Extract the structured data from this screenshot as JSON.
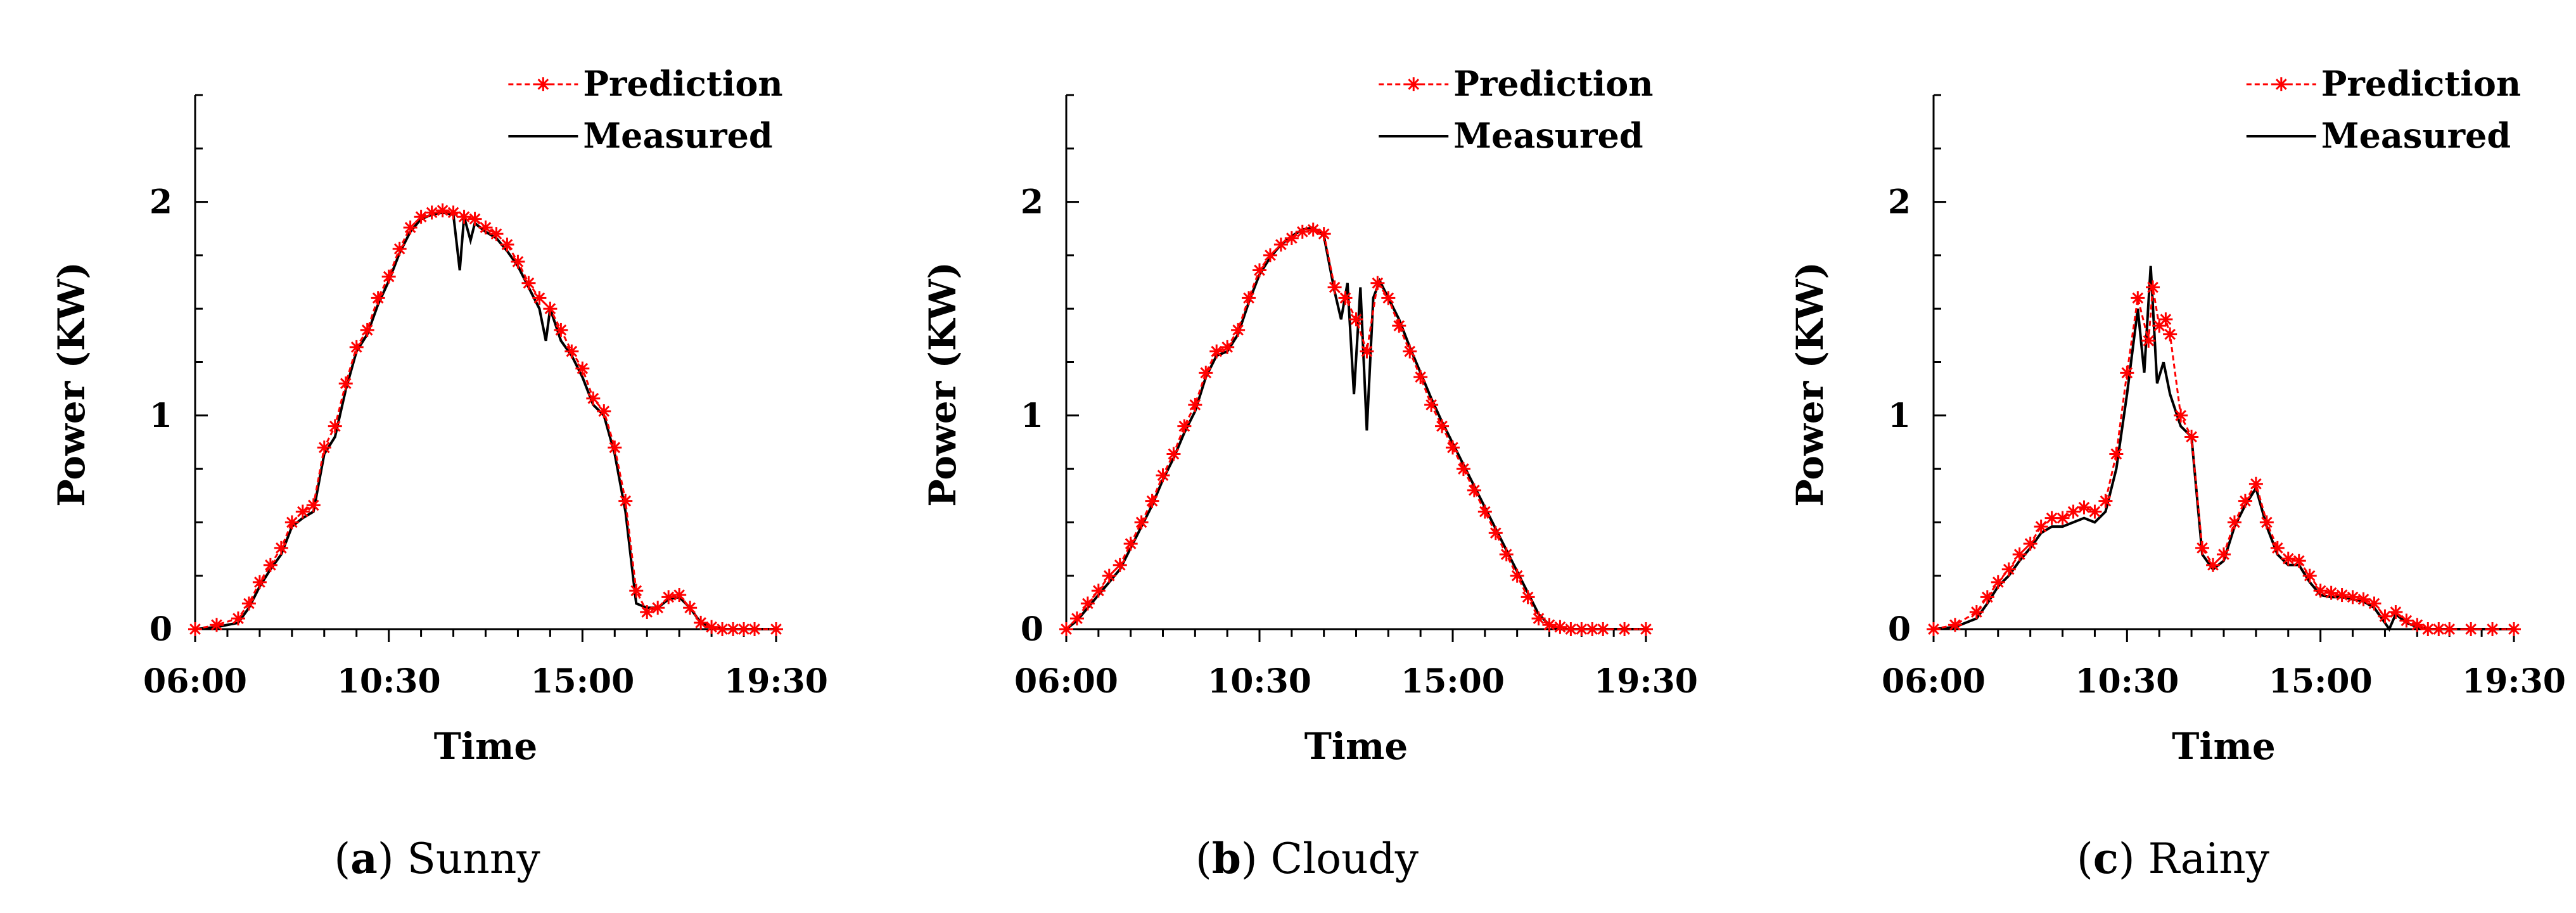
{
  "chart_data": [
    {
      "type": "line",
      "caption": {
        "letter": "a",
        "label": "Sunny"
      },
      "xlabel": "Time",
      "ylabel": "Power (KW)",
      "x_tick_labels": [
        "06:00",
        "10:30",
        "15:00",
        "19:30"
      ],
      "x_tick_hours": [
        6,
        10.5,
        15,
        19.5
      ],
      "y_ticks": [
        0,
        1,
        2
      ],
      "xlim": [
        6,
        19.5
      ],
      "ylim": [
        0,
        2.5
      ],
      "legend": [
        "Prediction",
        "Measured"
      ],
      "series": [
        {
          "name": "Prediction",
          "color": "#ff0000",
          "marker": "asterisk",
          "x": [
            6.0,
            6.5,
            7.0,
            7.25,
            7.5,
            7.75,
            8.0,
            8.25,
            8.5,
            8.75,
            9.0,
            9.25,
            9.5,
            9.75,
            10.0,
            10.25,
            10.5,
            10.75,
            11.0,
            11.25,
            11.5,
            11.75,
            12.0,
            12.25,
            12.5,
            12.75,
            13.0,
            13.25,
            13.5,
            13.75,
            14.0,
            14.25,
            14.5,
            14.75,
            15.0,
            15.25,
            15.5,
            15.75,
            16.0,
            16.25,
            16.5,
            16.75,
            17.0,
            17.25,
            17.5,
            17.75,
            18.0,
            18.25,
            18.5,
            18.75,
            19.0,
            19.5
          ],
          "y": [
            0.0,
            0.02,
            0.05,
            0.12,
            0.22,
            0.3,
            0.38,
            0.5,
            0.55,
            0.58,
            0.85,
            0.95,
            1.15,
            1.32,
            1.4,
            1.55,
            1.65,
            1.78,
            1.88,
            1.93,
            1.95,
            1.96,
            1.95,
            1.93,
            1.92,
            1.88,
            1.85,
            1.8,
            1.72,
            1.62,
            1.55,
            1.5,
            1.4,
            1.3,
            1.22,
            1.08,
            1.02,
            0.85,
            0.6,
            0.18,
            0.08,
            0.1,
            0.15,
            0.16,
            0.1,
            0.03,
            0.01,
            0.0,
            0.0,
            0.0,
            0.0,
            0.0
          ]
        },
        {
          "name": "Measured",
          "color": "#000000",
          "marker": "none",
          "x": [
            6.0,
            6.5,
            7.0,
            7.25,
            7.5,
            7.75,
            8.0,
            8.25,
            8.5,
            8.75,
            9.0,
            9.25,
            9.5,
            9.75,
            10.0,
            10.25,
            10.5,
            10.75,
            11.0,
            11.25,
            11.5,
            11.75,
            12.0,
            12.15,
            12.25,
            12.4,
            12.5,
            12.75,
            13.0,
            13.25,
            13.5,
            13.75,
            14.0,
            14.15,
            14.25,
            14.5,
            14.75,
            15.0,
            15.25,
            15.5,
            15.75,
            16.0,
            16.25,
            16.5,
            16.75,
            17.0,
            17.25,
            17.5,
            17.75,
            18.0,
            18.25,
            18.5,
            18.75,
            19.0,
            19.5
          ],
          "y": [
            0.0,
            0.01,
            0.03,
            0.1,
            0.2,
            0.28,
            0.35,
            0.48,
            0.52,
            0.55,
            0.82,
            0.9,
            1.12,
            1.3,
            1.38,
            1.52,
            1.63,
            1.76,
            1.86,
            1.92,
            1.94,
            1.95,
            1.94,
            1.68,
            1.93,
            1.82,
            1.9,
            1.86,
            1.83,
            1.77,
            1.7,
            1.6,
            1.5,
            1.35,
            1.5,
            1.35,
            1.28,
            1.18,
            1.05,
            1.0,
            0.82,
            0.55,
            0.12,
            0.1,
            0.1,
            0.14,
            0.15,
            0.1,
            0.03,
            0.01,
            0.0,
            0.0,
            0.0,
            0.0,
            0.0
          ]
        }
      ]
    },
    {
      "type": "line",
      "caption": {
        "letter": "b",
        "label": "Cloudy"
      },
      "xlabel": "Time",
      "ylabel": "Power (KW)",
      "x_tick_labels": [
        "06:00",
        "10:30",
        "15:00",
        "19:30"
      ],
      "x_tick_hours": [
        6,
        10.5,
        15,
        19.5
      ],
      "y_ticks": [
        0,
        1,
        2
      ],
      "xlim": [
        6,
        19.5
      ],
      "ylim": [
        0,
        2.5
      ],
      "legend": [
        "Prediction",
        "Measured"
      ],
      "series": [
        {
          "name": "Prediction",
          "color": "#ff0000",
          "marker": "asterisk",
          "x": [
            6.0,
            6.25,
            6.5,
            6.75,
            7.0,
            7.25,
            7.5,
            7.75,
            8.0,
            8.25,
            8.5,
            8.75,
            9.0,
            9.25,
            9.5,
            9.75,
            10.0,
            10.25,
            10.5,
            10.75,
            11.0,
            11.25,
            11.5,
            11.75,
            12.0,
            12.25,
            12.5,
            12.75,
            13.0,
            13.25,
            13.5,
            13.75,
            14.0,
            14.25,
            14.5,
            14.75,
            15.0,
            15.25,
            15.5,
            15.75,
            16.0,
            16.25,
            16.5,
            16.75,
            17.0,
            17.25,
            17.5,
            17.75,
            18.0,
            18.25,
            18.5,
            19.0,
            19.5
          ],
          "y": [
            0.0,
            0.05,
            0.12,
            0.18,
            0.25,
            0.3,
            0.4,
            0.5,
            0.6,
            0.72,
            0.82,
            0.95,
            1.05,
            1.2,
            1.3,
            1.32,
            1.4,
            1.55,
            1.68,
            1.75,
            1.8,
            1.83,
            1.86,
            1.87,
            1.85,
            1.6,
            1.55,
            1.45,
            1.3,
            1.62,
            1.55,
            1.42,
            1.3,
            1.18,
            1.05,
            0.95,
            0.85,
            0.75,
            0.65,
            0.55,
            0.45,
            0.35,
            0.25,
            0.15,
            0.05,
            0.02,
            0.01,
            0.0,
            0.0,
            0.0,
            0.0,
            0.0,
            0.0
          ]
        },
        {
          "name": "Measured",
          "color": "#000000",
          "marker": "none",
          "x": [
            6.0,
            6.25,
            6.5,
            6.75,
            7.0,
            7.25,
            7.5,
            7.75,
            8.0,
            8.25,
            8.5,
            8.75,
            9.0,
            9.25,
            9.5,
            9.75,
            10.0,
            10.25,
            10.5,
            10.75,
            11.0,
            11.25,
            11.5,
            11.75,
            12.0,
            12.25,
            12.4,
            12.55,
            12.7,
            12.85,
            13.0,
            13.15,
            13.3,
            13.5,
            13.75,
            14.0,
            14.25,
            14.5,
            14.75,
            15.0,
            15.25,
            15.5,
            15.75,
            16.0,
            16.25,
            16.5,
            16.75,
            17.0,
            17.25,
            17.5,
            17.75,
            18.0,
            18.25,
            18.5,
            19.0,
            19.5
          ],
          "y": [
            0.0,
            0.04,
            0.1,
            0.16,
            0.22,
            0.28,
            0.38,
            0.48,
            0.58,
            0.7,
            0.8,
            0.92,
            1.02,
            1.18,
            1.28,
            1.3,
            1.38,
            1.53,
            1.66,
            1.74,
            1.8,
            1.84,
            1.87,
            1.88,
            1.84,
            1.58,
            1.45,
            1.62,
            1.1,
            1.6,
            0.93,
            1.55,
            1.63,
            1.55,
            1.45,
            1.32,
            1.2,
            1.08,
            0.97,
            0.87,
            0.77,
            0.67,
            0.57,
            0.47,
            0.37,
            0.27,
            0.17,
            0.07,
            0.02,
            0.0,
            0.0,
            0.0,
            0.0,
            0.0,
            0.0,
            0.0
          ]
        }
      ]
    },
    {
      "type": "line",
      "caption": {
        "letter": "c",
        "label": "Rainy"
      },
      "xlabel": "Time",
      "ylabel": "Power (KW)",
      "x_tick_labels": [
        "06:00",
        "10:30",
        "15:00",
        "19:30"
      ],
      "x_tick_hours": [
        6,
        10.5,
        15,
        19.5
      ],
      "y_ticks": [
        0,
        1,
        2
      ],
      "xlim": [
        6,
        19.5
      ],
      "ylim": [
        0,
        2.5
      ],
      "legend": [
        "Prediction",
        "Measured"
      ],
      "series": [
        {
          "name": "Prediction",
          "color": "#ff0000",
          "marker": "asterisk",
          "x": [
            6.0,
            6.5,
            7.0,
            7.25,
            7.5,
            7.75,
            8.0,
            8.25,
            8.5,
            8.75,
            9.0,
            9.25,
            9.5,
            9.75,
            10.0,
            10.25,
            10.5,
            10.75,
            11.0,
            11.1,
            11.25,
            11.4,
            11.5,
            11.75,
            12.0,
            12.25,
            12.5,
            12.75,
            13.0,
            13.25,
            13.5,
            13.75,
            14.0,
            14.25,
            14.5,
            14.75,
            15.0,
            15.25,
            15.5,
            15.75,
            16.0,
            16.25,
            16.5,
            16.75,
            17.0,
            17.25,
            17.5,
            17.75,
            18.0,
            18.5,
            19.0,
            19.5
          ],
          "y": [
            0.0,
            0.02,
            0.08,
            0.15,
            0.22,
            0.28,
            0.35,
            0.4,
            0.48,
            0.52,
            0.52,
            0.55,
            0.57,
            0.55,
            0.6,
            0.82,
            1.2,
            1.55,
            1.35,
            1.6,
            1.42,
            1.45,
            1.38,
            1.0,
            0.9,
            0.38,
            0.3,
            0.35,
            0.5,
            0.6,
            0.68,
            0.5,
            0.38,
            0.33,
            0.32,
            0.25,
            0.18,
            0.17,
            0.16,
            0.15,
            0.14,
            0.12,
            0.06,
            0.08,
            0.04,
            0.02,
            0.0,
            0.0,
            0.0,
            0.0,
            0.0,
            0.0
          ]
        },
        {
          "name": "Measured",
          "color": "#000000",
          "marker": "none",
          "x": [
            6.0,
            6.5,
            7.0,
            7.25,
            7.5,
            7.75,
            8.0,
            8.25,
            8.5,
            8.75,
            9.0,
            9.25,
            9.5,
            9.75,
            10.0,
            10.25,
            10.5,
            10.75,
            10.9,
            11.05,
            11.2,
            11.35,
            11.5,
            11.75,
            12.0,
            12.25,
            12.5,
            12.75,
            13.0,
            13.25,
            13.5,
            13.75,
            14.0,
            14.25,
            14.5,
            14.75,
            15.0,
            15.25,
            15.5,
            15.75,
            16.0,
            16.25,
            16.5,
            16.6,
            16.75,
            17.0,
            17.25,
            17.5,
            17.75,
            18.0,
            18.5,
            19.0,
            19.5
          ],
          "y": [
            0.0,
            0.01,
            0.05,
            0.12,
            0.2,
            0.25,
            0.32,
            0.38,
            0.45,
            0.48,
            0.48,
            0.5,
            0.52,
            0.5,
            0.55,
            0.75,
            1.1,
            1.5,
            1.2,
            1.7,
            1.15,
            1.25,
            1.1,
            0.95,
            0.9,
            0.35,
            0.28,
            0.32,
            0.48,
            0.58,
            0.66,
            0.48,
            0.35,
            0.3,
            0.3,
            0.22,
            0.16,
            0.15,
            0.15,
            0.14,
            0.13,
            0.1,
            0.03,
            0.0,
            0.07,
            0.03,
            0.01,
            0.0,
            0.0,
            0.0,
            0.0,
            0.0,
            0.0
          ]
        }
      ]
    }
  ]
}
